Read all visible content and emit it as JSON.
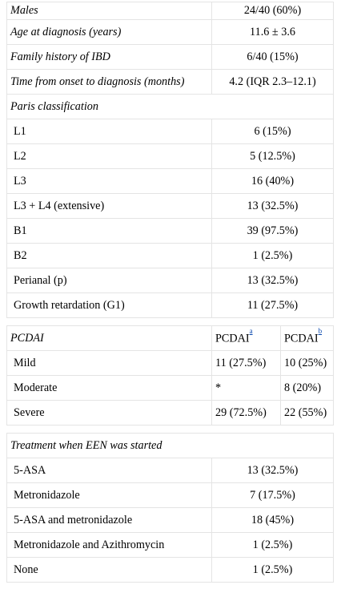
{
  "rows": [
    {
      "label": "Males",
      "value": "24/40 (60%)"
    },
    {
      "label": "Age at diagnosis (years)",
      "value": "11.6 ± 3.6"
    },
    {
      "label": "Family history of IBD",
      "value": "6/40 (15%)"
    },
    {
      "label": "Time from onset to diagnosis (months)",
      "value": "4.2 (IQR 2.3–12.1)"
    }
  ],
  "paris": {
    "header": "Paris classification",
    "items": [
      {
        "label": "L1",
        "value": "6 (15%)"
      },
      {
        "label": "L2",
        "value": "5 (12.5%)"
      },
      {
        "label": "L3",
        "value": "16 (40%)"
      },
      {
        "label": "L3 + L4 (extensive)",
        "value": "13 (32.5%)"
      },
      {
        "label": "B1",
        "value": "39 (97.5%)"
      },
      {
        "label": "B2",
        "value": "1 (2.5%)"
      },
      {
        "label": "Perianal (p)",
        "value": "13 (32.5%)"
      },
      {
        "label": "Growth retardation (G1)",
        "value": "11 (27.5%)"
      }
    ]
  },
  "pcdai": {
    "header": "PCDAI",
    "col_a": "PCDAI",
    "col_a_sup": "a",
    "col_b": "PCDAI",
    "col_b_sup": "b",
    "items": [
      {
        "label": "Mild",
        "a": "11 (27.5%)",
        "b": "10 (25%)"
      },
      {
        "label": "Moderate",
        "a": "*",
        "b": "8 (20%)"
      },
      {
        "label": "Severe",
        "a": "29 (72.5%)",
        "b": "22 (55%)"
      }
    ]
  },
  "treatment": {
    "header": "Treatment when EEN was started",
    "items": [
      {
        "label": "5-ASA",
        "value": "13 (32.5%)"
      },
      {
        "label": "Metronidazole",
        "value": "7 (17.5%)"
      },
      {
        "label": "5-ASA and metronidazole",
        "value": "18 (45%)"
      },
      {
        "label": "Metronidazole and Azithromycin",
        "value": "1 (2.5%)"
      },
      {
        "label": "None",
        "value": "1 (2.5%)"
      }
    ]
  }
}
